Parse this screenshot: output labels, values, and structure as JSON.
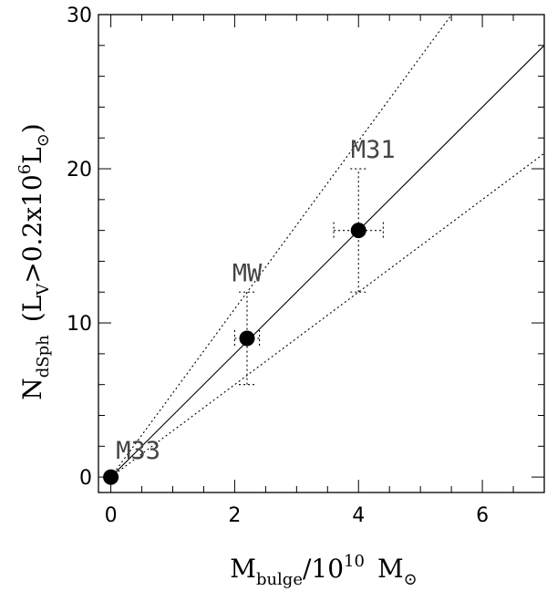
{
  "chart_data": {
    "type": "scatter",
    "title": "",
    "xlabel": {
      "main": "M",
      "sub": "bulge",
      "mid": "/10",
      "sup": "10",
      "unit": "M",
      "unit_symbol": "⊙"
    },
    "ylabel": {
      "main": "N",
      "sub": "dSph",
      "cond_open": "(L",
      "cond_sub": "V",
      "cond_mid": ">0.2x10",
      "cond_sup": "6",
      "cond_unit": "L",
      "cond_sym": "⊙",
      "cond_close": ")"
    },
    "xlim": [
      -0.2,
      7
    ],
    "ylim": [
      -1,
      30
    ],
    "x_ticks": [
      0,
      2,
      4,
      6
    ],
    "y_ticks": [
      0,
      10,
      20,
      30
    ],
    "x_tick_labels": [
      "0",
      "2",
      "4",
      "6"
    ],
    "y_tick_labels": [
      "0",
      "10",
      "20",
      "30"
    ],
    "grid": false,
    "points": [
      {
        "name": "M33",
        "x": 0,
        "y": 0,
        "xerr": [
          0,
          0
        ],
        "yerr": [
          0,
          0
        ]
      },
      {
        "name": "MW",
        "x": 2.2,
        "y": 9,
        "xerr": [
          2.0,
          2.4
        ],
        "yerr": [
          6,
          12
        ]
      },
      {
        "name": "M31",
        "x": 4.0,
        "y": 16,
        "xerr": [
          3.6,
          4.4
        ],
        "yerr": [
          12,
          20
        ]
      }
    ],
    "fit_line": {
      "slope": 4.0,
      "intercept": 0
    },
    "envelope_lines": [
      {
        "slope": 5.45,
        "intercept": 0
      },
      {
        "slope": 3.0,
        "intercept": 0
      }
    ]
  }
}
